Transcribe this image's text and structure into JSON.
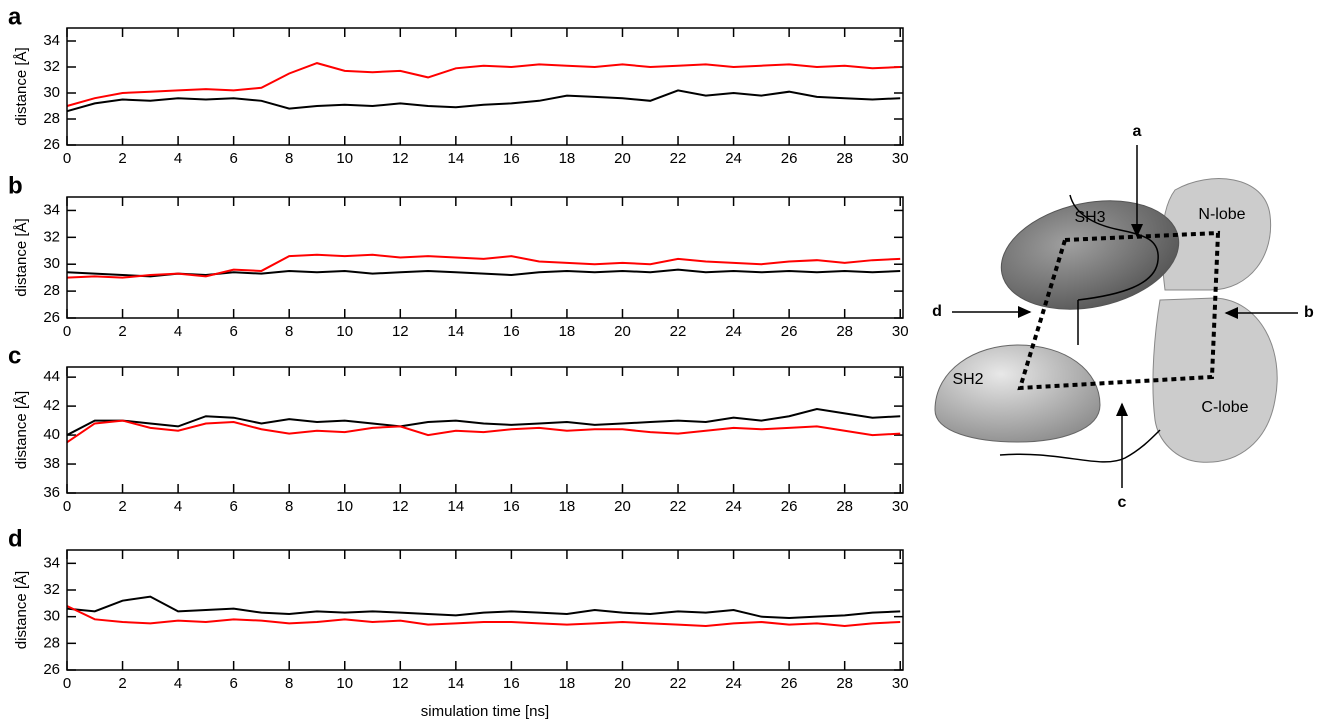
{
  "chart_data": [
    {
      "type": "line",
      "title": "a",
      "ylabel": "distance [Å]",
      "x": [
        0,
        1,
        2,
        3,
        4,
        5,
        6,
        7,
        8,
        9,
        10,
        11,
        12,
        13,
        14,
        15,
        16,
        17,
        18,
        19,
        20,
        21,
        22,
        23,
        24,
        25,
        26,
        27,
        28,
        29,
        30
      ],
      "xlim": [
        0,
        30.1
      ],
      "xticks": [
        0,
        2,
        4,
        6,
        8,
        10,
        12,
        14,
        16,
        18,
        20,
        22,
        24,
        26,
        28,
        30
      ],
      "ylim": [
        26,
        35
      ],
      "yticks": [
        26,
        28,
        30,
        32,
        34
      ],
      "series": [
        {
          "color": "#000000",
          "values": [
            28.6,
            29.2,
            29.5,
            29.4,
            29.6,
            29.5,
            29.6,
            29.4,
            28.8,
            29.0,
            29.1,
            29.0,
            29.2,
            29.0,
            28.9,
            29.1,
            29.2,
            29.4,
            29.8,
            29.7,
            29.6,
            29.4,
            30.2,
            29.8,
            30.0,
            29.8,
            30.1,
            29.7,
            29.6,
            29.5,
            29.6
          ]
        },
        {
          "color": "#ff0000",
          "values": [
            29.0,
            29.6,
            30.0,
            30.1,
            30.2,
            30.3,
            30.2,
            30.4,
            31.5,
            32.3,
            31.7,
            31.6,
            31.7,
            31.2,
            31.9,
            32.1,
            32.0,
            32.2,
            32.1,
            32.0,
            32.2,
            32.0,
            32.1,
            32.2,
            32.0,
            32.1,
            32.2,
            32.0,
            32.1,
            31.9,
            32.0
          ]
        }
      ]
    },
    {
      "type": "line",
      "title": "b",
      "ylabel": "distance [Å]",
      "x": [
        0,
        1,
        2,
        3,
        4,
        5,
        6,
        7,
        8,
        9,
        10,
        11,
        12,
        13,
        14,
        15,
        16,
        17,
        18,
        19,
        20,
        21,
        22,
        23,
        24,
        25,
        26,
        27,
        28,
        29,
        30
      ],
      "xlim": [
        0,
        30.1
      ],
      "xticks": [
        0,
        2,
        4,
        6,
        8,
        10,
        12,
        14,
        16,
        18,
        20,
        22,
        24,
        26,
        28,
        30
      ],
      "ylim": [
        26,
        35
      ],
      "yticks": [
        26,
        28,
        30,
        32,
        34
      ],
      "series": [
        {
          "color": "#000000",
          "values": [
            29.4,
            29.3,
            29.2,
            29.1,
            29.3,
            29.2,
            29.4,
            29.3,
            29.5,
            29.4,
            29.5,
            29.3,
            29.4,
            29.5,
            29.4,
            29.3,
            29.2,
            29.4,
            29.5,
            29.4,
            29.5,
            29.4,
            29.6,
            29.4,
            29.5,
            29.4,
            29.5,
            29.4,
            29.5,
            29.4,
            29.5
          ]
        },
        {
          "color": "#ff0000",
          "values": [
            29.0,
            29.1,
            29.0,
            29.2,
            29.3,
            29.1,
            29.6,
            29.5,
            30.6,
            30.7,
            30.6,
            30.7,
            30.5,
            30.6,
            30.5,
            30.4,
            30.6,
            30.2,
            30.1,
            30.0,
            30.1,
            30.0,
            30.4,
            30.2,
            30.1,
            30.0,
            30.2,
            30.3,
            30.1,
            30.3,
            30.4
          ]
        }
      ]
    },
    {
      "type": "line",
      "title": "c",
      "ylabel": "distance [Å]",
      "x": [
        0,
        1,
        2,
        3,
        4,
        5,
        6,
        7,
        8,
        9,
        10,
        11,
        12,
        13,
        14,
        15,
        16,
        17,
        18,
        19,
        20,
        21,
        22,
        23,
        24,
        25,
        26,
        27,
        28,
        29,
        30
      ],
      "xlim": [
        0,
        30.1
      ],
      "xticks": [
        0,
        2,
        4,
        6,
        8,
        10,
        12,
        14,
        16,
        18,
        20,
        22,
        24,
        26,
        28,
        30
      ],
      "ylim": [
        36,
        44.7
      ],
      "yticks": [
        36,
        38,
        40,
        42,
        44
      ],
      "series": [
        {
          "color": "#000000",
          "values": [
            40.0,
            41.0,
            41.0,
            40.8,
            40.6,
            41.3,
            41.2,
            40.8,
            41.1,
            40.9,
            41.0,
            40.8,
            40.6,
            40.9,
            41.0,
            40.8,
            40.7,
            40.8,
            40.9,
            40.7,
            40.8,
            40.9,
            41.0,
            40.9,
            41.2,
            41.0,
            41.3,
            41.8,
            41.5,
            41.2,
            41.3
          ]
        },
        {
          "color": "#ff0000",
          "values": [
            39.5,
            40.8,
            41.0,
            40.5,
            40.3,
            40.8,
            40.9,
            40.4,
            40.1,
            40.3,
            40.2,
            40.5,
            40.6,
            40.0,
            40.3,
            40.2,
            40.4,
            40.5,
            40.3,
            40.4,
            40.4,
            40.2,
            40.1,
            40.3,
            40.5,
            40.4,
            40.5,
            40.6,
            40.3,
            40.0,
            40.1
          ]
        }
      ]
    },
    {
      "type": "line",
      "title": "d",
      "ylabel": "distance [Å]",
      "xlabel": "simulation time [ns]",
      "x": [
        0,
        1,
        2,
        3,
        4,
        5,
        6,
        7,
        8,
        9,
        10,
        11,
        12,
        13,
        14,
        15,
        16,
        17,
        18,
        19,
        20,
        21,
        22,
        23,
        24,
        25,
        26,
        27,
        28,
        29,
        30
      ],
      "xlim": [
        0,
        30.1
      ],
      "xticks": [
        0,
        2,
        4,
        6,
        8,
        10,
        12,
        14,
        16,
        18,
        20,
        22,
        24,
        26,
        28,
        30
      ],
      "ylim": [
        26,
        35
      ],
      "yticks": [
        26,
        28,
        30,
        32,
        34
      ],
      "series": [
        {
          "color": "#000000",
          "values": [
            30.6,
            30.4,
            31.2,
            31.5,
            30.4,
            30.5,
            30.6,
            30.3,
            30.2,
            30.4,
            30.3,
            30.4,
            30.3,
            30.2,
            30.1,
            30.3,
            30.4,
            30.3,
            30.2,
            30.5,
            30.3,
            30.2,
            30.4,
            30.3,
            30.5,
            30.0,
            29.9,
            30.0,
            30.1,
            30.3,
            30.4
          ]
        },
        {
          "color": "#ff0000",
          "values": [
            30.8,
            29.8,
            29.6,
            29.5,
            29.7,
            29.6,
            29.8,
            29.7,
            29.5,
            29.6,
            29.8,
            29.6,
            29.7,
            29.4,
            29.5,
            29.6,
            29.6,
            29.5,
            29.4,
            29.5,
            29.6,
            29.5,
            29.4,
            29.3,
            29.5,
            29.6,
            29.4,
            29.5,
            29.3,
            29.5,
            29.6
          ]
        }
      ]
    }
  ],
  "diagram": {
    "domains": [
      "SH3",
      "N-lobe",
      "SH2",
      "C-lobe"
    ],
    "arrows": [
      "a",
      "b",
      "c",
      "d"
    ]
  }
}
